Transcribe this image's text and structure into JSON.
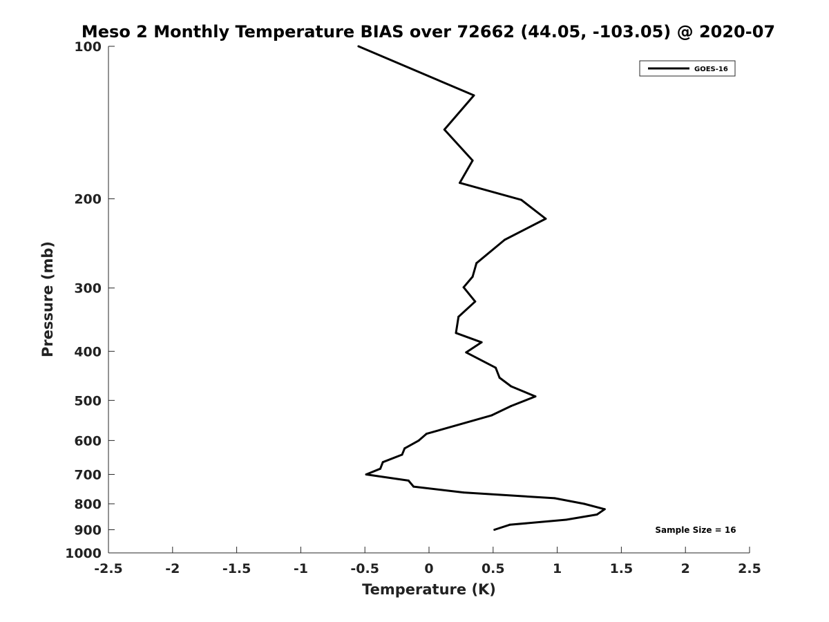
{
  "chart_data": {
    "type": "line",
    "title": "Meso 2 Monthly Temperature BIAS over 72662 (44.05, -103.05) @ 2020-07",
    "xlabel": "Temperature (K)",
    "ylabel": "Pressure (mb)",
    "xlim": [
      -2.5,
      2.5
    ],
    "ylim": [
      100,
      1000
    ],
    "y_scale": "log",
    "y_reversed": true,
    "x_ticks": [
      "-2.5",
      "-2",
      "-1.5",
      "-1",
      "-0.5",
      "0",
      "0.5",
      "1",
      "1.5",
      "2",
      "2.5"
    ],
    "y_ticks": [
      "100",
      "200",
      "300",
      "400",
      "500",
      "600",
      "700",
      "800",
      "900",
      "1000"
    ],
    "grid": false,
    "legend_position": "top-right",
    "series": [
      {
        "name": "GOES-16",
        "color": "#000000",
        "points": [
          {
            "x": -0.55,
            "y": 100
          },
          {
            "x": 0.35,
            "y": 125
          },
          {
            "x": 0.12,
            "y": 146
          },
          {
            "x": 0.34,
            "y": 168
          },
          {
            "x": 0.24,
            "y": 186
          },
          {
            "x": 0.72,
            "y": 201
          },
          {
            "x": 0.91,
            "y": 219
          },
          {
            "x": 0.59,
            "y": 241
          },
          {
            "x": 0.37,
            "y": 268
          },
          {
            "x": 0.34,
            "y": 285
          },
          {
            "x": 0.27,
            "y": 299
          },
          {
            "x": 0.36,
            "y": 319
          },
          {
            "x": 0.23,
            "y": 342
          },
          {
            "x": 0.21,
            "y": 368
          },
          {
            "x": 0.41,
            "y": 384
          },
          {
            "x": 0.29,
            "y": 402
          },
          {
            "x": 0.52,
            "y": 431
          },
          {
            "x": 0.55,
            "y": 451
          },
          {
            "x": 0.64,
            "y": 469
          },
          {
            "x": 0.83,
            "y": 491
          },
          {
            "x": 0.64,
            "y": 513
          },
          {
            "x": 0.49,
            "y": 535
          },
          {
            "x": -0.02,
            "y": 582
          },
          {
            "x": -0.08,
            "y": 600
          },
          {
            "x": -0.19,
            "y": 622
          },
          {
            "x": -0.21,
            "y": 640
          },
          {
            "x": -0.36,
            "y": 662
          },
          {
            "x": -0.38,
            "y": 682
          },
          {
            "x": -0.49,
            "y": 700
          },
          {
            "x": -0.16,
            "y": 720
          },
          {
            "x": -0.12,
            "y": 740
          },
          {
            "x": 0.27,
            "y": 760
          },
          {
            "x": 0.98,
            "y": 780
          },
          {
            "x": 1.21,
            "y": 800
          },
          {
            "x": 1.37,
            "y": 820
          },
          {
            "x": 1.31,
            "y": 840
          },
          {
            "x": 1.07,
            "y": 860
          },
          {
            "x": 0.63,
            "y": 880
          },
          {
            "x": 0.51,
            "y": 900
          }
        ]
      }
    ],
    "annotations": [
      "Sample Size = 16"
    ]
  }
}
